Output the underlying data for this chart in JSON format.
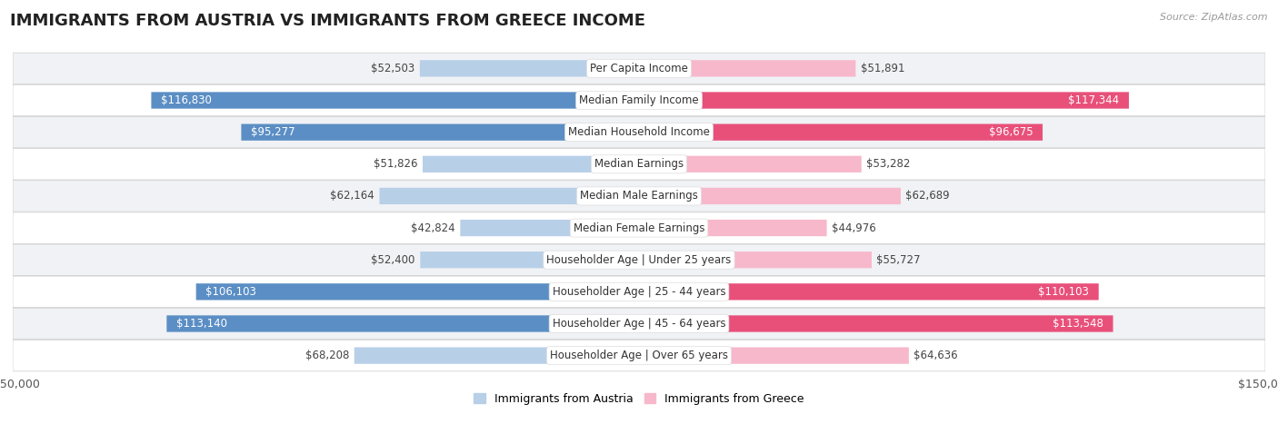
{
  "title": "IMMIGRANTS FROM AUSTRIA VS IMMIGRANTS FROM GREECE INCOME",
  "source": "Source: ZipAtlas.com",
  "categories": [
    "Per Capita Income",
    "Median Family Income",
    "Median Household Income",
    "Median Earnings",
    "Median Male Earnings",
    "Median Female Earnings",
    "Householder Age | Under 25 years",
    "Householder Age | 25 - 44 years",
    "Householder Age | 45 - 64 years",
    "Householder Age | Over 65 years"
  ],
  "austria_values": [
    52503,
    116830,
    95277,
    51826,
    62164,
    42824,
    52400,
    106103,
    113140,
    68208
  ],
  "greece_values": [
    51891,
    117344,
    96675,
    53282,
    62689,
    44976,
    55727,
    110103,
    113548,
    64636
  ],
  "austria_labels": [
    "$52,503",
    "$116,830",
    "$95,277",
    "$51,826",
    "$62,164",
    "$42,824",
    "$52,400",
    "$106,103",
    "$113,140",
    "$68,208"
  ],
  "greece_labels": [
    "$51,891",
    "$117,344",
    "$96,675",
    "$53,282",
    "$62,689",
    "$44,976",
    "$55,727",
    "$110,103",
    "$113,548",
    "$64,636"
  ],
  "austria_color_light": "#b8cfe8",
  "austria_color_dark": "#5b8ec4",
  "greece_color_light": "#f7b8cc",
  "greece_color_dark": "#e8507a",
  "austria_inside_threshold": 80000,
  "greece_inside_threshold": 80000,
  "max_value": 150000,
  "legend_austria": "Immigrants from Austria",
  "legend_greece": "Immigrants from Greece",
  "bg_color": "#ffffff",
  "row_bg_even": "#f0f2f5",
  "row_bg_odd": "#ffffff",
  "bar_height": 0.52,
  "title_fontsize": 13,
  "label_fontsize": 8.5,
  "value_fontsize": 8.5
}
